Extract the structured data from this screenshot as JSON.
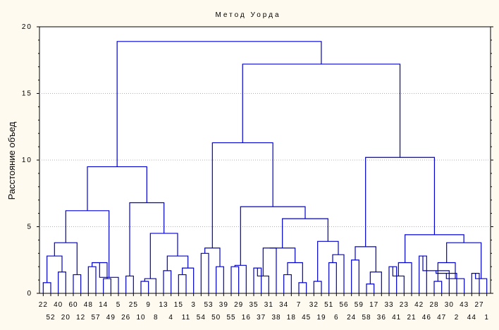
{
  "chart_data": {
    "type": "dendrogram",
    "title": "Метод Уорда",
    "ylabel": "Расстояние объед",
    "xlabel": "",
    "ylim": [
      0,
      20
    ],
    "yticks": [
      0,
      5,
      10,
      15,
      20
    ],
    "grid": true,
    "line_color": "#0000cc",
    "leaf_order": [
      "22",
      "52",
      "40",
      "20",
      "60",
      "12",
      "48",
      "57",
      "14",
      "49",
      "5",
      "26",
      "25",
      "10",
      "9",
      "8",
      "13",
      "4",
      "15",
      "11",
      "3",
      "54",
      "53",
      "50",
      "39",
      "55",
      "29",
      "16",
      "35",
      "37",
      "31",
      "38",
      "34",
      "18",
      "7",
      "45",
      "32",
      "19",
      "51",
      "6",
      "56",
      "24",
      "59",
      "58",
      "17",
      "36",
      "33",
      "41",
      "23",
      "21",
      "42",
      "46",
      "28",
      "47",
      "30",
      "2",
      "43",
      "44",
      "27",
      "1"
    ],
    "merges": [
      {
        "left": "22",
        "right": "52",
        "height": 0.8
      },
      {
        "left": "40",
        "right": "20",
        "height": 1.6
      },
      {
        "left": 0,
        "right": 1,
        "height": 2.8
      },
      {
        "left": "60",
        "right": "12",
        "height": 1.4
      },
      {
        "left": 2,
        "right": 3,
        "height": 3.8
      },
      {
        "left": "48",
        "right": "57",
        "height": 2.0
      },
      {
        "left": "14",
        "right": "49",
        "height": 1.1
      },
      {
        "left": 5,
        "right": 6,
        "height": 2.3
      },
      {
        "left": 7,
        "right": "5",
        "height": 1.2
      },
      {
        "left": 4,
        "right": 8,
        "height": 6.2
      },
      {
        "left": "26",
        "right": "25",
        "height": 1.3
      },
      {
        "left": "10",
        "right": "9",
        "height": 0.9
      },
      {
        "left": 11,
        "right": "8",
        "height": 1.1
      },
      {
        "left": "13",
        "right": "4",
        "height": 1.7
      },
      {
        "left": "15",
        "right": "11",
        "height": 1.4
      },
      {
        "left": 14,
        "right": "3",
        "height": 1.9
      },
      {
        "left": 13,
        "right": 15,
        "height": 2.8
      },
      {
        "left": 12,
        "right": 16,
        "height": 4.5
      },
      {
        "left": 10,
        "right": 17,
        "height": 6.8
      },
      {
        "left": 9,
        "right": 18,
        "height": 9.5
      },
      {
        "left": "54",
        "right": "53",
        "height": 3.0
      },
      {
        "left": "50",
        "right": "39",
        "height": 2.0
      },
      {
        "left": 20,
        "right": 21,
        "height": 3.4
      },
      {
        "left": "55",
        "right": "29",
        "height": 2.0
      },
      {
        "left": 23,
        "right": "16",
        "height": 2.1
      },
      {
        "left": "35",
        "right": "37",
        "height": 1.9
      },
      {
        "left": 25,
        "right": "31",
        "height": 1.3
      },
      {
        "left": 26,
        "right": "38",
        "height": 3.4
      },
      {
        "left": "34",
        "right": "18",
        "height": 1.4
      },
      {
        "left": "7",
        "right": "45",
        "height": 0.8
      },
      {
        "left": 28,
        "right": 29,
        "height": 2.3
      },
      {
        "left": 27,
        "right": 30,
        "height": 3.4
      },
      {
        "left": "32",
        "right": "19",
        "height": 0.9
      },
      {
        "left": "51",
        "right": "6",
        "height": 2.3
      },
      {
        "left": 33,
        "right": "56",
        "height": 2.9
      },
      {
        "left": 32,
        "right": 34,
        "height": 3.9
      },
      {
        "left": 31,
        "right": 35,
        "height": 5.6
      },
      {
        "left": 24,
        "right": 36,
        "height": 6.5
      },
      {
        "left": 22,
        "right": 37,
        "height": 11.3
      },
      {
        "left": "24",
        "right": "59",
        "height": 2.5
      },
      {
        "left": "58",
        "right": "17",
        "height": 0.7
      },
      {
        "left": 40,
        "right": "36",
        "height": 1.6
      },
      {
        "left": 39,
        "right": 41,
        "height": 3.5
      },
      {
        "left": "33",
        "right": "41",
        "height": 2.0
      },
      {
        "left": 43,
        "right": "23",
        "height": 1.3
      },
      {
        "left": 44,
        "right": "21",
        "height": 2.3
      },
      {
        "left": "42",
        "right": "46",
        "height": 2.8
      },
      {
        "left": "28",
        "right": "47",
        "height": 0.9
      },
      {
        "left": 46,
        "right": "30",
        "height": 1.7
      },
      {
        "left": 48,
        "right": "2",
        "height": 1.5
      },
      {
        "left": 49,
        "right": "43",
        "height": 1.1
      },
      {
        "left": 47,
        "right": 50,
        "height": 2.3
      },
      {
        "left": "44",
        "right": "27",
        "height": 1.5
      },
      {
        "left": 52,
        "right": "1",
        "height": 1.1
      },
      {
        "left": 51,
        "right": 53,
        "height": 3.8
      },
      {
        "left": 45,
        "right": 54,
        "height": 4.4
      },
      {
        "left": 42,
        "right": 55,
        "height": 10.2
      },
      {
        "left": 38,
        "right": 56,
        "height": 17.2
      },
      {
        "left": 19,
        "right": 57,
        "height": 18.9
      }
    ]
  }
}
